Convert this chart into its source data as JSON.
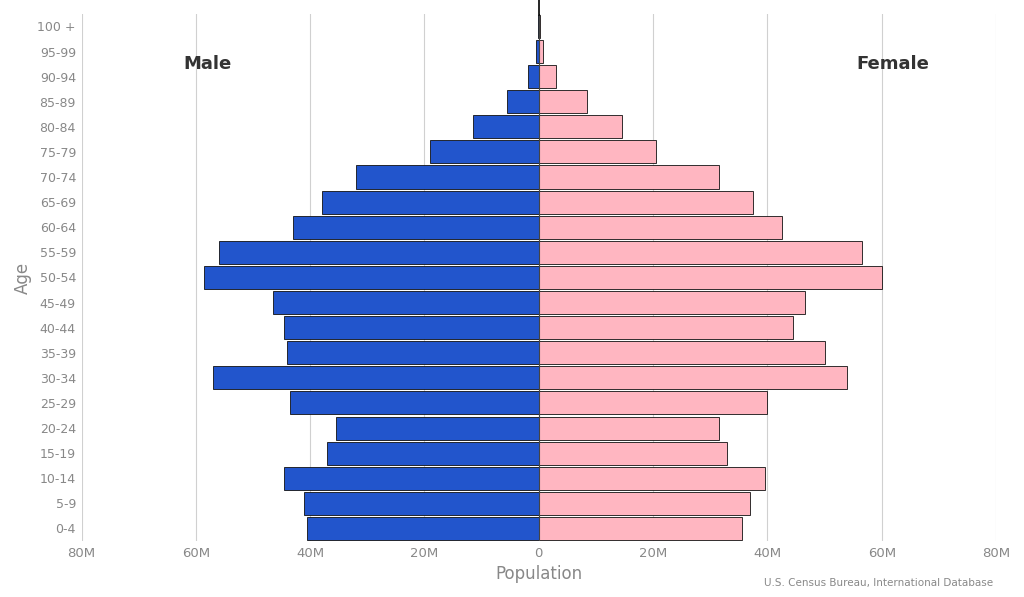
{
  "xlabel": "Population",
  "ylabel": "Age",
  "source": "U.S. Census Bureau, International Database",
  "male_label": "Male",
  "female_label": "Female",
  "age_groups": [
    "0-4",
    "5-9",
    "10-14",
    "15-19",
    "20-24",
    "25-29",
    "30-34",
    "35-39",
    "40-44",
    "45-49",
    "50-54",
    "55-59",
    "60-64",
    "65-69",
    "70-74",
    "75-79",
    "80-84",
    "85-89",
    "90-94",
    "95-99",
    "100 +"
  ],
  "male_values": [
    40.5,
    41.0,
    44.5,
    37.0,
    35.5,
    43.5,
    57.0,
    44.0,
    44.5,
    46.5,
    58.5,
    56.0,
    43.0,
    38.0,
    32.0,
    19.0,
    11.5,
    5.5,
    1.8,
    0.4,
    0.08
  ],
  "female_values": [
    35.5,
    37.0,
    39.5,
    33.0,
    31.5,
    40.0,
    54.0,
    50.0,
    44.5,
    46.5,
    60.0,
    56.5,
    42.5,
    37.5,
    31.5,
    20.5,
    14.5,
    8.5,
    3.0,
    0.8,
    0.15
  ],
  "male_color": "#2255CC",
  "female_color": "#FFB6C1",
  "bar_edge_color": "#111111",
  "bar_edge_width": 0.6,
  "background_color": "#ffffff",
  "grid_color": "#d0d0d0",
  "text_color": "#888888",
  "xlim": 80,
  "tick_positions": [
    -80,
    -60,
    -40,
    -20,
    0,
    20,
    40,
    60,
    80
  ],
  "tick_labels": [
    "80M",
    "60M",
    "40M",
    "20M",
    "0",
    "20M",
    "40M",
    "60M",
    "80M"
  ]
}
